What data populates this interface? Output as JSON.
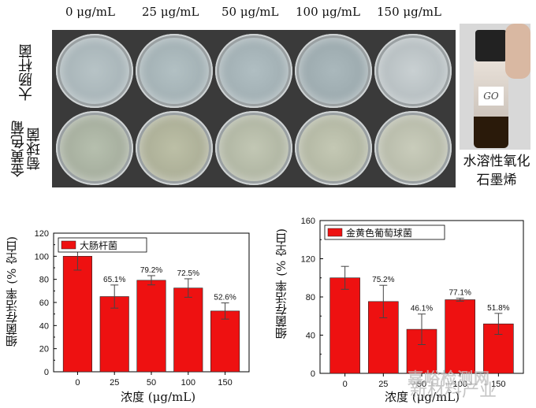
{
  "photo_panel": {
    "concentrations": [
      "0 μg/mL",
      "25 μg/mL",
      "50 μg/mL",
      "100 μg/mL",
      "150 μg/mL"
    ],
    "row_labels": [
      "大肠杆菌",
      "金黄色葡萄球菌"
    ],
    "vial_label": "GO",
    "vial_caption": "水溶性氧化石墨烯"
  },
  "chart_data": [
    {
      "type": "bar",
      "legend": "大肠杆菌",
      "categories": [
        "0",
        "25",
        "50",
        "100",
        "150"
      ],
      "values": [
        100,
        65.1,
        79.2,
        72.5,
        52.6
      ],
      "errors": [
        12,
        10,
        4,
        8,
        7
      ],
      "data_labels": [
        "",
        "65.1%",
        "79.2%",
        "72.5%",
        "52.6%"
      ],
      "yticks": [
        "0",
        "20",
        "40",
        "60",
        "80",
        "100",
        "120"
      ],
      "ylim": [
        0,
        120
      ],
      "xlabel": "浓度 (μg/mL)",
      "ylabel": "细菌存活率 (% 空白)",
      "bar_color": "#ee1111",
      "legend_position": "top-left"
    },
    {
      "type": "bar",
      "legend": "金黄色葡萄球菌",
      "categories": [
        "0",
        "25",
        "50",
        "100",
        "150"
      ],
      "values": [
        100,
        75.2,
        46.1,
        77.1,
        51.8
      ],
      "errors": [
        12,
        17,
        16,
        1.5,
        11
      ],
      "data_labels": [
        "",
        "75.2%",
        "46.1%",
        "77.1%",
        "51.8%"
      ],
      "yticks": [
        "0",
        "40",
        "80",
        "120",
        "160"
      ],
      "ylim": [
        0,
        160
      ],
      "xlabel": "浓度 (μg/mL)",
      "ylabel": "细菌存活率 (% 空白)",
      "bar_color": "#ee1111",
      "legend_position": "top-left"
    }
  ],
  "watermark": {
    "line1": "嘉峪检测网",
    "line2": "新材料产业"
  }
}
